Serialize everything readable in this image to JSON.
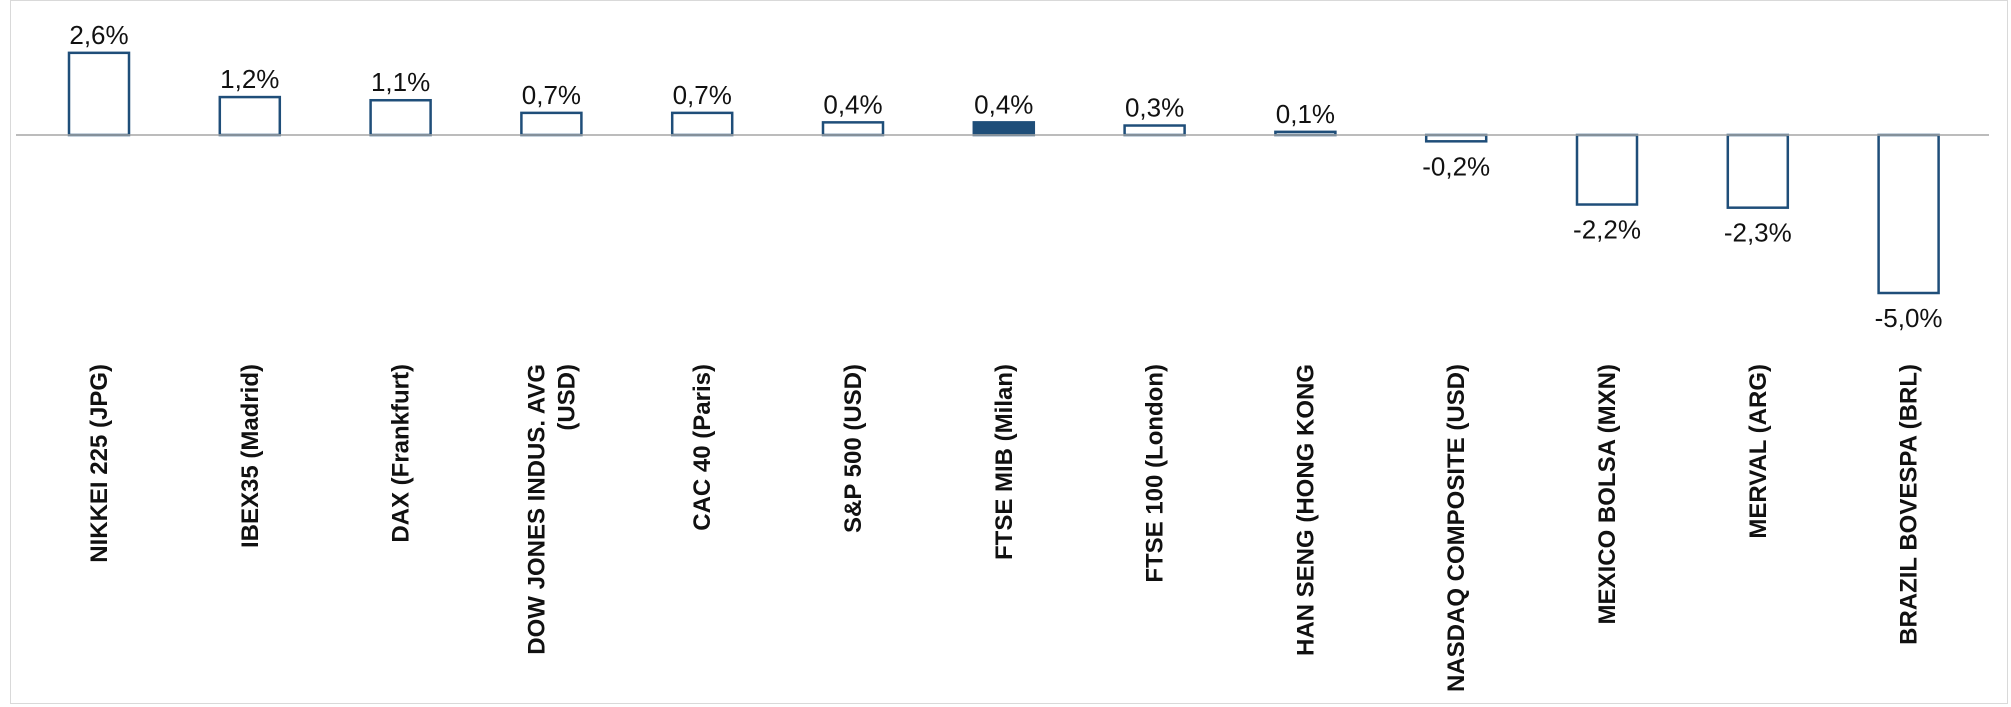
{
  "colors": {
    "bar_stroke": "#1f4e79",
    "bar_fill": "#ffffff",
    "bar_highlight": "#1f4e79",
    "baseline": "#a6a6a6"
  },
  "chart_data": {
    "type": "bar",
    "title": "",
    "xlabel": "",
    "ylabel": "",
    "ylim": [
      -5.0,
      2.6
    ],
    "grid": false,
    "highlight_category": "FTSE MIB (Milan)",
    "categories": [
      [
        "NIKKEI 225 (JPG)"
      ],
      [
        "IBEX35 (Madrid)"
      ],
      [
        "DAX (Frankfurt)"
      ],
      [
        "DOW JONES INDUS. AVG",
        "(USD)"
      ],
      [
        "CAC 40 (Paris)"
      ],
      [
        "S&P 500 (USD)"
      ],
      [
        "FTSE MIB (Milan)"
      ],
      [
        "FTSE 100 (London)"
      ],
      [
        "HAN SENG (HONG KONG"
      ],
      [
        "NASDAQ COMPOSITE (USD)"
      ],
      [
        "MEXICO BOLSA (MXN)"
      ],
      [
        "MERVAL (ARG)"
      ],
      [
        "BRAZIL BOVESPA (BRL)"
      ]
    ],
    "values": [
      2.6,
      1.2,
      1.1,
      0.7,
      0.7,
      0.4,
      0.4,
      0.3,
      0.1,
      -0.2,
      -2.2,
      -2.3,
      -5.0
    ],
    "data_labels": [
      "2,6%",
      "1,2%",
      "1,1%",
      "0,7%",
      "0,7%",
      "0,4%",
      "0,4%",
      "0,3%",
      "0,1%",
      "-0,2%",
      "-2,2%",
      "-2,3%",
      "-5,0%"
    ]
  }
}
